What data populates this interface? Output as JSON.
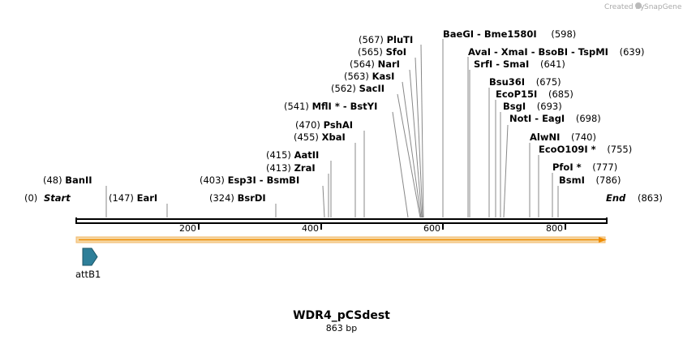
{
  "credit": {
    "text": "Created by",
    "brand": "SnapGene"
  },
  "sequence": {
    "name": "WDR4_pCSdest",
    "length_label": "863 bp",
    "length": 863
  },
  "ends": {
    "start_pos": "(0)",
    "start_label": "Start",
    "end_label": "End",
    "end_pos": "(863)"
  },
  "ticks": [
    "200",
    "400",
    "600",
    "800"
  ],
  "sites": [
    {
      "name": "BanII",
      "pos": "(48)"
    },
    {
      "name": "EarI",
      "pos": "(147)"
    },
    {
      "name": "BsrDI",
      "pos": "(324)"
    },
    {
      "name": "Esp3I - BsmBI",
      "pos": "(403)"
    },
    {
      "name": "ZraI",
      "pos": "(413)"
    },
    {
      "name": "AatII",
      "pos": "(415)"
    },
    {
      "name": "XbaI",
      "pos": "(455)"
    },
    {
      "name": "PshAI",
      "pos": "(470)"
    },
    {
      "name": "MflI * - BstYI",
      "pos": "(541)"
    },
    {
      "name": "SacII",
      "pos": "(562)"
    },
    {
      "name": "KasI",
      "pos": "(563)"
    },
    {
      "name": "NarI",
      "pos": "(564)"
    },
    {
      "name": "SfoI",
      "pos": "(565)"
    },
    {
      "name": "PluTI",
      "pos": "(567)"
    },
    {
      "name": "BaeGI - Bme1580I",
      "pos": "(598)"
    },
    {
      "name": "AvaI - XmaI - BsoBI - TspMI",
      "pos": "(639)"
    },
    {
      "name": "SrfI - SmaI",
      "pos": "(641)"
    },
    {
      "name": "Bsu36I",
      "pos": "(675)"
    },
    {
      "name": "EcoP15I",
      "pos": "(685)"
    },
    {
      "name": "BsgI",
      "pos": "(693)"
    },
    {
      "name": "NotI - EagI",
      "pos": "(698)"
    },
    {
      "name": "AlwNI",
      "pos": "(740)"
    },
    {
      "name": "EcoO109I *",
      "pos": "(755)"
    },
    {
      "name": "PfoI *",
      "pos": "(777)"
    },
    {
      "name": "BsmI",
      "pos": "(786)"
    }
  ],
  "features": [
    {
      "name": "attB1",
      "color": "#2e7f99"
    }
  ],
  "colors": {
    "orf_fill": "#f5d9a8",
    "orf_stroke": "#f0a030",
    "arrow": "#f08c00"
  }
}
